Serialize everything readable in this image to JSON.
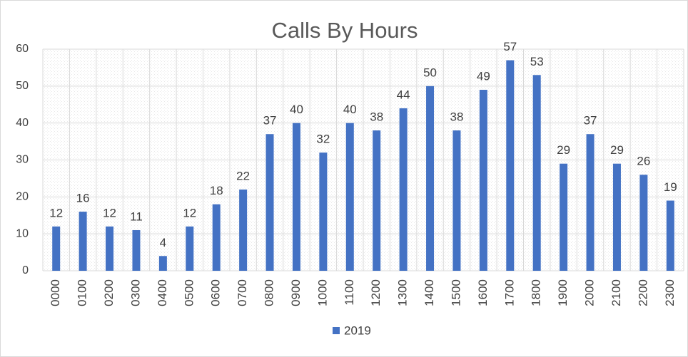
{
  "chart_data": {
    "type": "bar",
    "title": "Calls By Hours",
    "categories": [
      "0000",
      "0100",
      "0200",
      "0300",
      "0400",
      "0500",
      "0600",
      "0700",
      "0800",
      "0900",
      "1000",
      "1100",
      "1200",
      "1300",
      "1400",
      "1500",
      "1600",
      "1700",
      "1800",
      "1900",
      "2000",
      "2100",
      "2200",
      "2300"
    ],
    "series": [
      {
        "name": "2019",
        "color": "#4472c4",
        "values": [
          12,
          16,
          12,
          11,
          4,
          12,
          18,
          22,
          37,
          40,
          32,
          40,
          38,
          44,
          50,
          38,
          49,
          57,
          53,
          29,
          37,
          29,
          26,
          19
        ]
      }
    ],
    "ylim": [
      0,
      60
    ],
    "yticks": [
      0,
      10,
      20,
      30,
      40,
      50,
      60
    ],
    "grid": true,
    "legend": "bottom"
  }
}
